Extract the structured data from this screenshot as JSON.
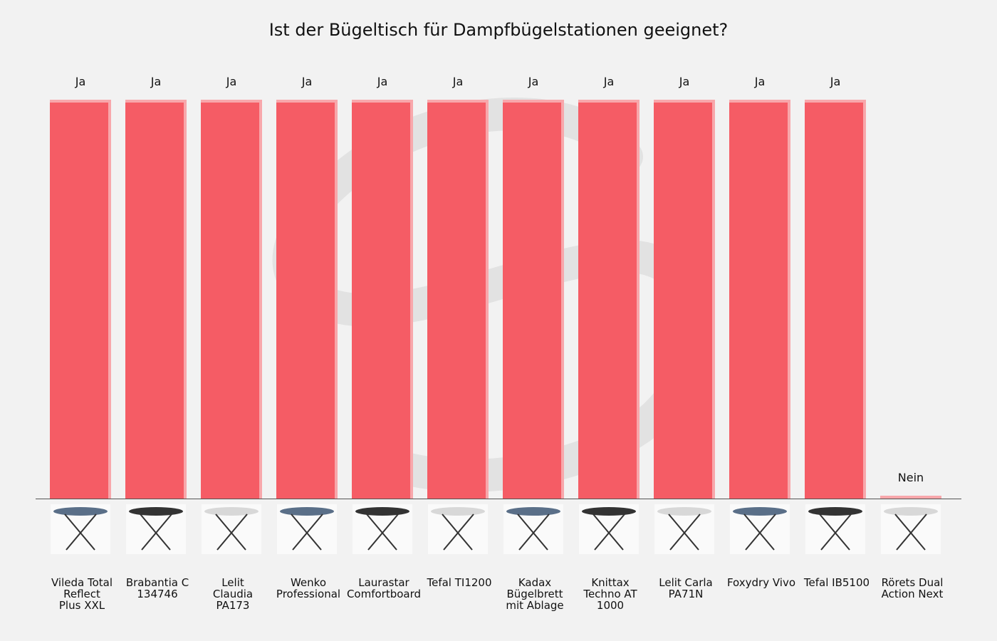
{
  "chart_data": {
    "type": "bar",
    "title": "Ist der Bügeltisch für Dampfbügelstationen geeignet?",
    "xlabel": "",
    "ylabel": "",
    "ylim": [
      0,
      1
    ],
    "grid": false,
    "legend": "none",
    "categories": [
      "Vileda Total Reflect Plus XXL",
      "Brabantia C 134746",
      "Lelit Claudia PA173",
      "Wenko Professional",
      "Laurastar Comfortboard",
      "Tefal TI1200",
      "Kadax Bügelbrett mit Ablage",
      "Knittax Techno AT 1000",
      "Lelit Carla PA71N",
      "Foxydry Vivo",
      "Tefal IB5100",
      "Rörets Dual Action Next"
    ],
    "category_lines": [
      [
        "Vileda Total",
        "Reflect",
        "Plus XXL"
      ],
      [
        "Brabantia C",
        "134746"
      ],
      [
        "Lelit",
        "Claudia",
        "PA173"
      ],
      [
        "Wenko",
        "Professional"
      ],
      [
        "Laurastar",
        "Comfortboard"
      ],
      [
        "Tefal TI1200"
      ],
      [
        "Kadax",
        "Bügelbrett",
        "mit Ablage"
      ],
      [
        "Knittax",
        "Techno AT",
        "1000"
      ],
      [
        "Lelit Carla",
        "PA71N"
      ],
      [
        "Foxydry Vivo"
      ],
      [
        "Tefal IB5100"
      ],
      [
        "Rörets Dual",
        "Action Next"
      ]
    ],
    "values": [
      1,
      1,
      1,
      1,
      1,
      1,
      1,
      1,
      1,
      1,
      1,
      0
    ],
    "data_labels": [
      "Ja",
      "Ja",
      "Ja",
      "Ja",
      "Ja",
      "Ja",
      "Ja",
      "Ja",
      "Ja",
      "Ja",
      "Ja",
      "Nein"
    ],
    "colors": {
      "bar": "#f55c65",
      "bar_edge": "#f8a7ab",
      "background": "#f2f2f2"
    }
  }
}
